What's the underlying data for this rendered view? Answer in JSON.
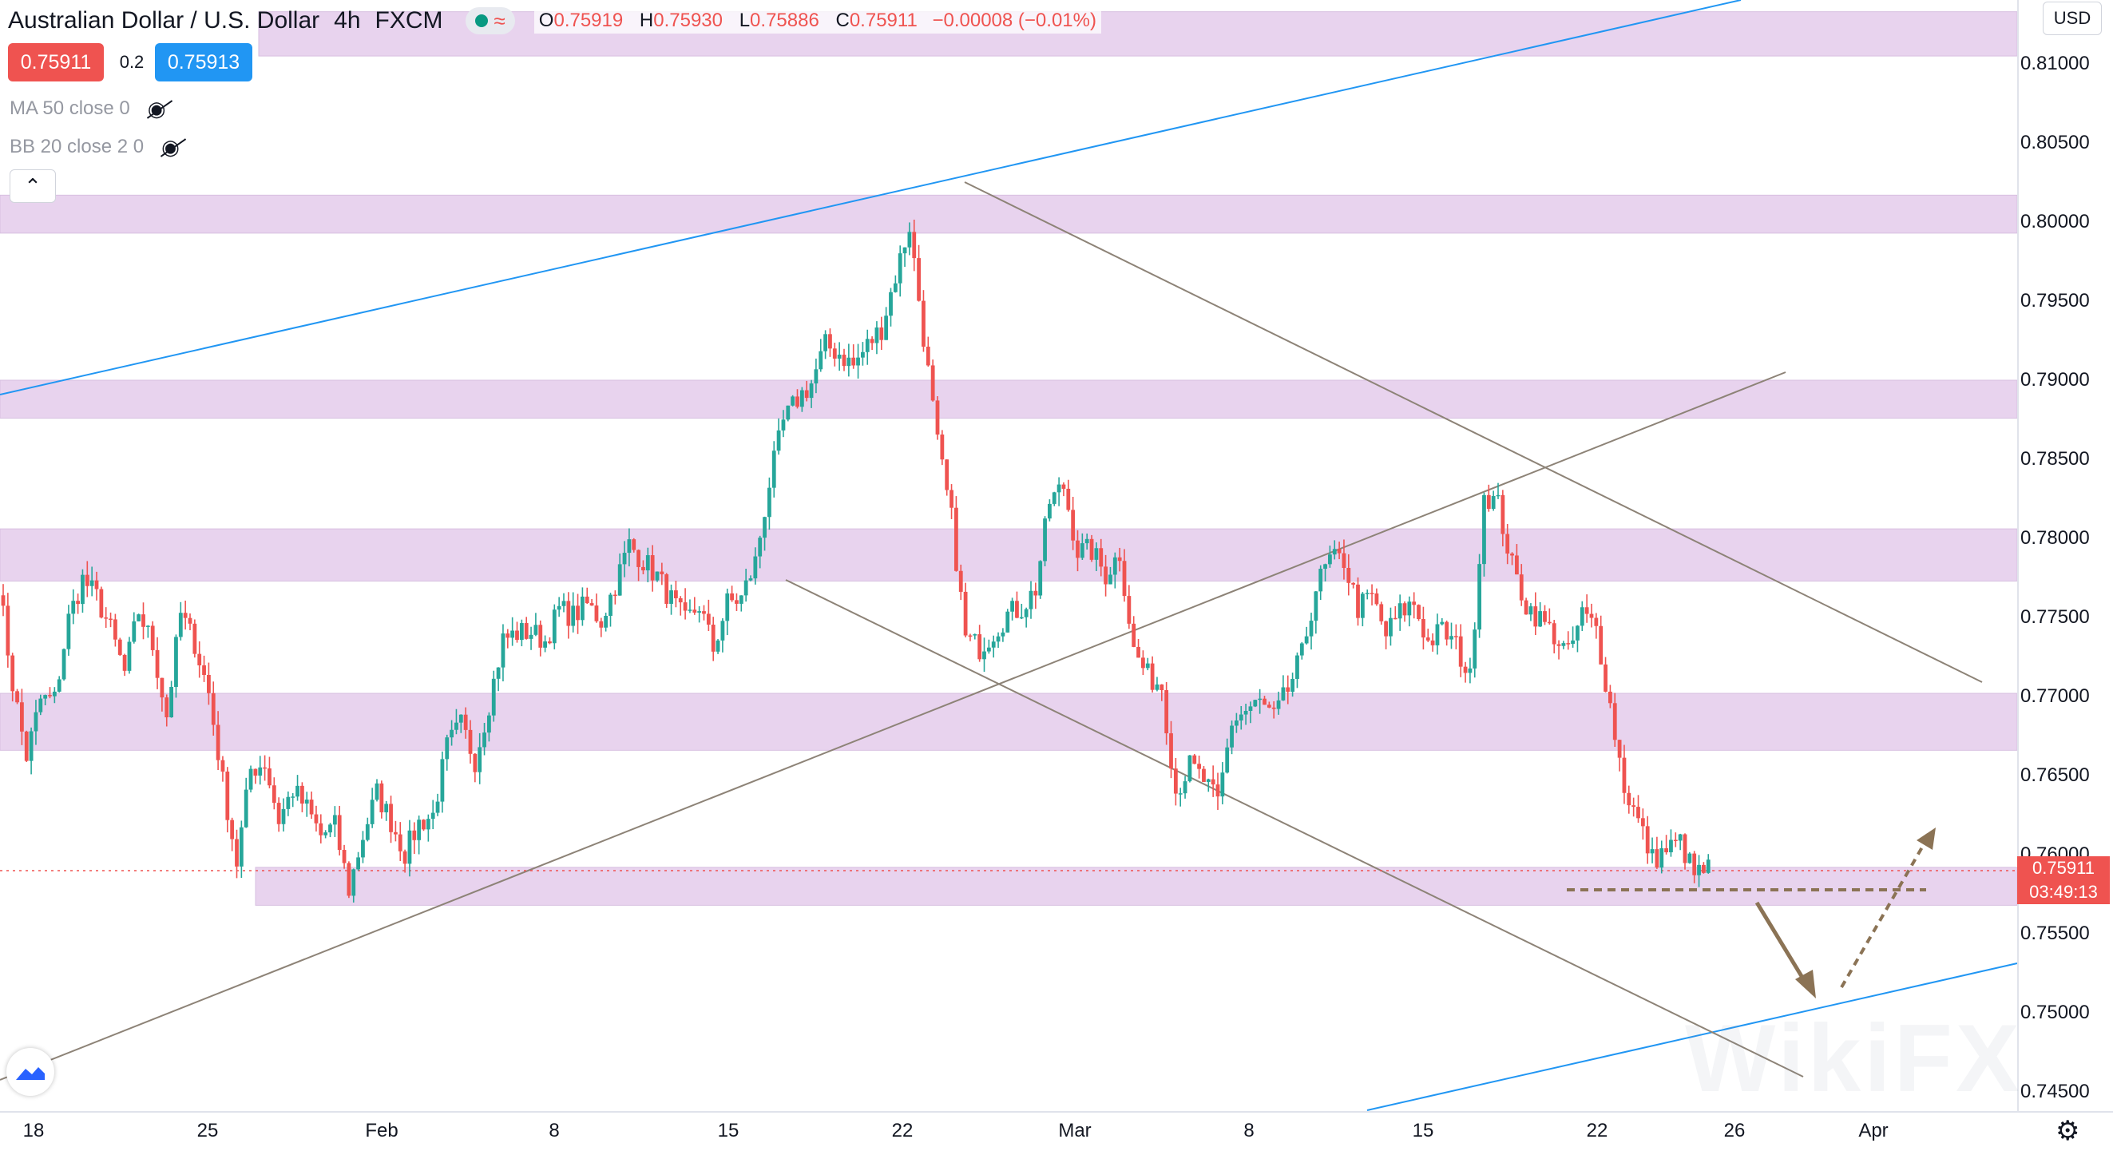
{
  "header": {
    "symbol": "Australian Dollar / U.S. Dollar",
    "interval": "4h",
    "source": "FXCM",
    "status_dot_color": "#089981",
    "ohlc": {
      "o_label": "O",
      "o": "0.75919",
      "h_label": "H",
      "h": "0.75930",
      "l_label": "L",
      "l": "0.75886",
      "c_label": "C",
      "c": "0.75911",
      "change": "−0.00008 (−0.01%)"
    }
  },
  "trade": {
    "sell_price": "0.75911",
    "spread": "0.2",
    "buy_price": "0.75913",
    "sell_color": "#ef5350",
    "buy_color": "#2196f3"
  },
  "indicators": [
    {
      "label": "MA 50 close 0",
      "icon": "eye-crossed-icon"
    },
    {
      "label": "BB 20 close 2 0",
      "icon": "eye-crossed-icon"
    }
  ],
  "currency_button": "USD",
  "price_labels": {
    "current": "0.75911",
    "countdown": "03:49:13"
  },
  "watermark": "WikiFX",
  "chart_data": {
    "type": "candlestick",
    "ylim": [
      0.7445,
      0.8125
    ],
    "y_ticks": [
      "0.81000",
      "0.80500",
      "0.80000",
      "0.79500",
      "0.79000",
      "0.78500",
      "0.78000",
      "0.77500",
      "0.77000",
      "0.76500",
      "0.76000",
      "0.75500",
      "0.75000",
      "0.74500"
    ],
    "x_ticks": [
      "18",
      "25",
      "Feb",
      "8",
      "15",
      "22",
      "Mar",
      "8",
      "15",
      "22",
      "26",
      "Apr"
    ],
    "up_color": "#26a69a",
    "down_color": "#ef5350",
    "zone_color": "#e8d3ee",
    "zones": [
      [
        0.8105,
        0.8133
      ],
      [
        0.7993,
        0.8017
      ],
      [
        0.7876,
        0.79
      ],
      [
        0.7773,
        0.7806
      ],
      [
        0.7666,
        0.7702
      ],
      [
        0.7568,
        0.7592
      ]
    ],
    "path_control_points": [
      [
        0,
        0.7772
      ],
      [
        3,
        0.7708
      ],
      [
        6,
        0.7662
      ],
      [
        9,
        0.7698
      ],
      [
        12,
        0.7698
      ],
      [
        15,
        0.7749
      ],
      [
        18,
        0.7774
      ],
      [
        21,
        0.7763
      ],
      [
        24,
        0.7742
      ],
      [
        27,
        0.7715
      ],
      [
        30,
        0.7754
      ],
      [
        33,
        0.7732
      ],
      [
        36,
        0.7688
      ],
      [
        39,
        0.7752
      ],
      [
        42,
        0.7734
      ],
      [
        45,
        0.7702
      ],
      [
        48,
        0.7646
      ],
      [
        51,
        0.7595
      ],
      [
        54,
        0.7654
      ],
      [
        57,
        0.7658
      ],
      [
        60,
        0.7622
      ],
      [
        63,
        0.7641
      ],
      [
        66,
        0.7629
      ],
      [
        69,
        0.7612
      ],
      [
        72,
        0.7618
      ],
      [
        75,
        0.7578
      ],
      [
        78,
        0.7612
      ],
      [
        81,
        0.7639
      ],
      [
        84,
        0.7621
      ],
      [
        87,
        0.7601
      ],
      [
        90,
        0.762
      ],
      [
        93,
        0.7625
      ],
      [
        96,
        0.7668
      ],
      [
        99,
        0.7682
      ],
      [
        102,
        0.766
      ],
      [
        105,
        0.7696
      ],
      [
        108,
        0.7736
      ],
      [
        111,
        0.774
      ],
      [
        114,
        0.7741
      ],
      [
        117,
        0.7735
      ],
      [
        120,
        0.7755
      ],
      [
        123,
        0.7751
      ],
      [
        126,
        0.7758
      ],
      [
        129,
        0.7748
      ],
      [
        132,
        0.7771
      ],
      [
        135,
        0.7796
      ],
      [
        138,
        0.7786
      ],
      [
        141,
        0.7776
      ],
      [
        144,
        0.7761
      ],
      [
        147,
        0.7747
      ],
      [
        150,
        0.7758
      ],
      [
        153,
        0.773
      ],
      [
        156,
        0.7759
      ],
      [
        159,
        0.7762
      ],
      [
        162,
        0.7785
      ],
      [
        165,
        0.7835
      ],
      [
        168,
        0.7873
      ],
      [
        171,
        0.7888
      ],
      [
        174,
        0.7898
      ],
      [
        177,
        0.7922
      ],
      [
        180,
        0.7917
      ],
      [
        183,
        0.7909
      ],
      [
        186,
        0.7922
      ],
      [
        189,
        0.7933
      ],
      [
        192,
        0.7966
      ],
      [
        195,
        0.7998
      ],
      [
        198,
        0.7928
      ],
      [
        201,
        0.7859
      ],
      [
        204,
        0.7812
      ],
      [
        207,
        0.7737
      ],
      [
        210,
        0.7731
      ],
      [
        213,
        0.7741
      ],
      [
        216,
        0.7752
      ],
      [
        219,
        0.7756
      ],
      [
        222,
        0.7768
      ],
      [
        225,
        0.7823
      ],
      [
        228,
        0.7833
      ],
      [
        231,
        0.7792
      ],
      [
        234,
        0.7792
      ],
      [
        237,
        0.7777
      ],
      [
        240,
        0.7791
      ],
      [
        243,
        0.7729
      ],
      [
        246,
        0.7713
      ],
      [
        249,
        0.7707
      ],
      [
        252,
        0.764
      ],
      [
        255,
        0.7656
      ],
      [
        258,
        0.7647
      ],
      [
        261,
        0.7632
      ],
      [
        264,
        0.7684
      ],
      [
        267,
        0.7691
      ],
      [
        270,
        0.7696
      ],
      [
        273,
        0.7686
      ],
      [
        276,
        0.7704
      ],
      [
        279,
        0.7726
      ],
      [
        282,
        0.7769
      ],
      [
        285,
        0.7786
      ],
      [
        288,
        0.7786
      ],
      [
        291,
        0.7756
      ],
      [
        294,
        0.7763
      ],
      [
        297,
        0.7739
      ],
      [
        300,
        0.7753
      ],
      [
        303,
        0.7759
      ],
      [
        306,
        0.7734
      ],
      [
        309,
        0.7742
      ],
      [
        312,
        0.7732
      ],
      [
        315,
        0.7711
      ],
      [
        318,
        0.7829
      ],
      [
        321,
        0.7821
      ],
      [
        324,
        0.7782
      ],
      [
        327,
        0.7758
      ],
      [
        330,
        0.7749
      ],
      [
        333,
        0.7739
      ],
      [
        336,
        0.7726
      ],
      [
        339,
        0.7752
      ],
      [
        342,
        0.7743
      ],
      [
        345,
        0.7694
      ],
      [
        348,
        0.7643
      ],
      [
        351,
        0.7621
      ],
      [
        354,
        0.7597
      ],
      [
        357,
        0.7603
      ],
      [
        360,
        0.7608
      ],
      [
        363,
        0.7587
      ],
      [
        366,
        0.7591
      ]
    ]
  },
  "annotations": {
    "zone_color": "#e8d3ee",
    "blue_line_color": "#2196f3",
    "gray_line_color": "#8d8377",
    "arrow_color": "#8b7355"
  }
}
